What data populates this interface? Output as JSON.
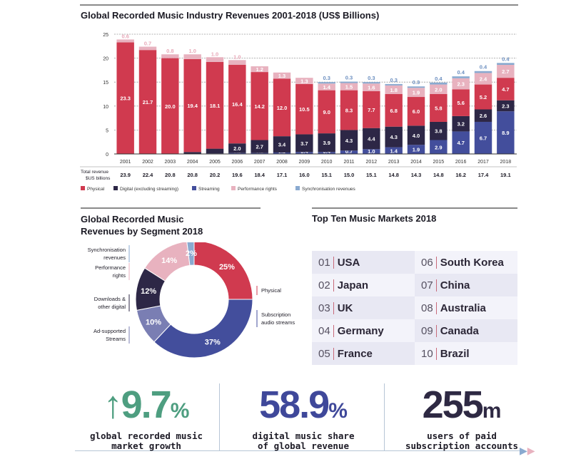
{
  "colors": {
    "physical": "#d03a4f",
    "digital": "#2d2746",
    "streaming": "#434e9c",
    "performance": "#e8b2bf",
    "sync": "#8aaad0",
    "ad_streams": "#7a7eb3",
    "growth_green": "#4e9e80",
    "digital_blue": "#3f489a",
    "dark": "#2e2943"
  },
  "chart_data": [
    {
      "type": "bar",
      "stacked": true,
      "title": "Global Recorded Music Industry Revenues 2001-2018 (US$ Billions)",
      "xlabel": "",
      "ylabel": "",
      "ylim": [
        0,
        25
      ],
      "yticks": [
        0,
        5,
        10,
        15,
        20,
        25
      ],
      "grid": true,
      "legend_position": "bottom",
      "categories": [
        "2001",
        "2002",
        "2003",
        "2004",
        "2005",
        "2006",
        "2007",
        "2008",
        "2009",
        "2010",
        "2011",
        "2012",
        "2013",
        "2014",
        "2015",
        "2016",
        "2017",
        "2018"
      ],
      "series": [
        {
          "name": "Streaming",
          "key": "streaming",
          "values": [
            0,
            0,
            0,
            0,
            0.1,
            0.2,
            0.2,
            0.3,
            0.4,
            0.4,
            0.7,
            1.0,
            1.4,
            1.9,
            2.9,
            4.7,
            6.7,
            8.9
          ]
        },
        {
          "name": "Digital (excluding streaming)",
          "key": "digital",
          "values": [
            0,
            0,
            0,
            0.4,
            1.0,
            2.0,
            2.7,
            3.4,
            3.7,
            3.9,
            4.3,
            4.4,
            4.3,
            4.0,
            3.8,
            3.2,
            2.6,
            2.3
          ]
        },
        {
          "name": "Physical",
          "key": "physical",
          "values": [
            23.3,
            21.7,
            20.0,
            19.4,
            18.1,
            16.4,
            14.2,
            12.0,
            10.5,
            9.0,
            8.3,
            7.7,
            6.8,
            6.0,
            5.8,
            5.6,
            5.2,
            4.7
          ]
        },
        {
          "name": "Performance rights",
          "key": "performance",
          "values": [
            0.6,
            0.7,
            0.8,
            1.0,
            1.0,
            1.0,
            1.2,
            1.3,
            1.3,
            1.4,
            1.5,
            1.6,
            1.8,
            1.9,
            2.0,
            2.3,
            2.4,
            2.7
          ]
        },
        {
          "name": "Synchronisation revenues",
          "key": "sync",
          "values": [
            0,
            0,
            0,
            0,
            0,
            0,
            0,
            0,
            0,
            0.3,
            0.3,
            0.3,
            0.3,
            0.3,
            0.4,
            0.4,
            0.4,
            0.4
          ]
        }
      ],
      "legend_order": [
        "physical",
        "digital",
        "streaming",
        "performance",
        "sync"
      ],
      "totals_label": [
        "Total revenue",
        "$US billions"
      ],
      "totals": [
        "23.9",
        "22.4",
        "20.8",
        "20.8",
        "20.2",
        "19.6",
        "18.4",
        "17.1",
        "16.0",
        "15.1",
        "15.0",
        "15.1",
        "14.8",
        "14.3",
        "14.8",
        "16.2",
        "17.4",
        "19.1"
      ]
    },
    {
      "type": "pie",
      "donut": true,
      "title": "Global Recorded Music Revenues by Segment 2018",
      "slices": [
        {
          "label": "Physical",
          "value": 25,
          "display": "25%",
          "key": "physical"
        },
        {
          "label": "Subscription audio streams",
          "value": 37,
          "display": "37%",
          "key": "streaming"
        },
        {
          "label": "Ad-supported Streams",
          "value": 10,
          "display": "10%",
          "key": "ad_streams"
        },
        {
          "label": "Downloads & other digital",
          "value": 12,
          "display": "12%",
          "key": "digital"
        },
        {
          "label": "Performance rights",
          "value": 14,
          "display": "14%",
          "key": "performance"
        },
        {
          "label": "Synchronisation revenues",
          "value": 2,
          "display": "2%",
          "key": "sync"
        }
      ]
    }
  ],
  "markets": {
    "title": "Top Ten Music Markets 2018",
    "items": [
      {
        "rank": "01",
        "name": "USA"
      },
      {
        "rank": "02",
        "name": "Japan"
      },
      {
        "rank": "03",
        "name": "UK"
      },
      {
        "rank": "04",
        "name": "Germany"
      },
      {
        "rank": "05",
        "name": "France"
      },
      {
        "rank": "06",
        "name": "South Korea"
      },
      {
        "rank": "07",
        "name": "China"
      },
      {
        "rank": "08",
        "name": "Australia"
      },
      {
        "rank": "09",
        "name": "Canada"
      },
      {
        "rank": "10",
        "name": "Brazil"
      }
    ]
  },
  "stats": [
    {
      "arrow": "↑",
      "value": "9.7",
      "unit": "%",
      "caption1": "global recorded music",
      "caption2": "market growth"
    },
    {
      "value": "58.9",
      "unit": "%",
      "caption1": "digital music share",
      "caption2": "of global revenue"
    },
    {
      "value": "255",
      "unit": "m",
      "caption1": "users of paid",
      "caption2": "subscription accounts"
    }
  ],
  "nav": {
    "next_icon": "▶",
    "next2_icon": "▶"
  }
}
